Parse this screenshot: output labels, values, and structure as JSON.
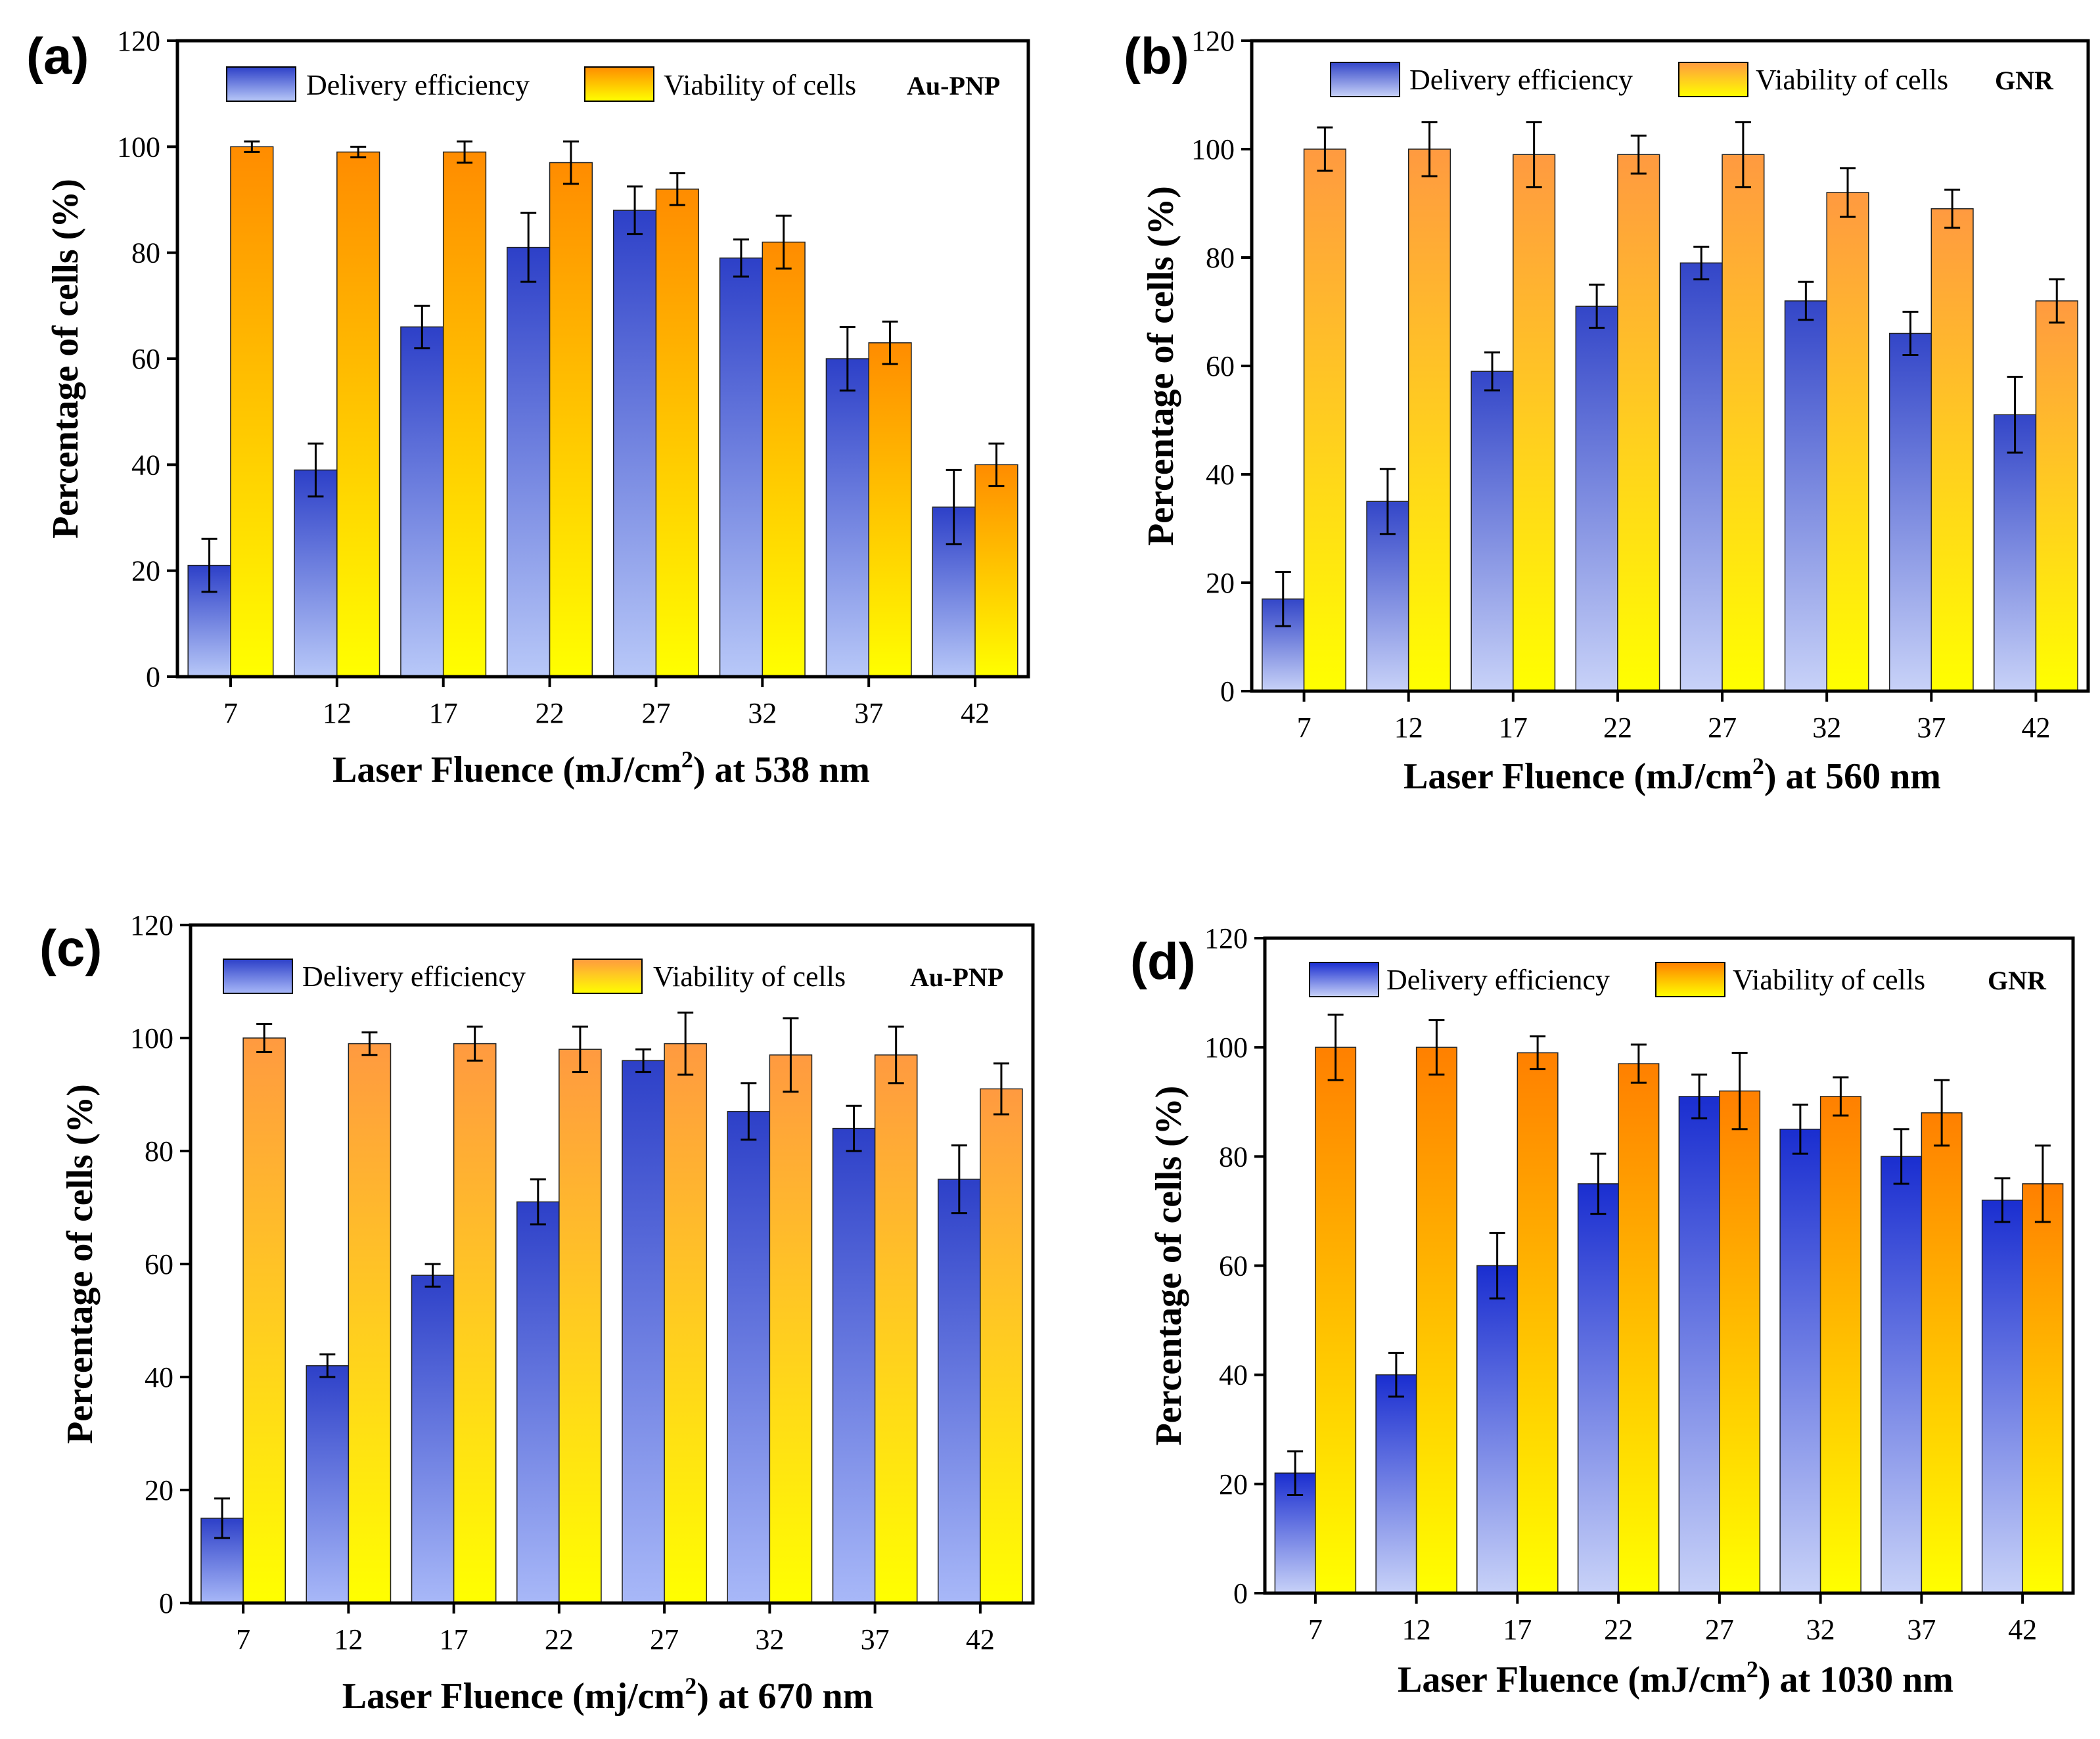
{
  "chart_data": [
    {
      "type": "bar",
      "panel_label": "(a)",
      "tag": "Au-PNP",
      "categories": [
        "7",
        "12",
        "17",
        "22",
        "27",
        "32",
        "37",
        "42"
      ],
      "series": [
        {
          "name": "Delivery efficiency",
          "values": [
            21,
            39,
            66,
            81,
            88,
            79,
            60,
            32
          ],
          "errors": [
            5,
            5,
            4,
            6.5,
            4.5,
            3.5,
            6,
            7
          ],
          "color_top": "#2d40c8",
          "color_bottom": "#b8c8f8"
        },
        {
          "name": "Viability of cells",
          "values": [
            100,
            99,
            99,
            97,
            92,
            82,
            63,
            40
          ],
          "errors": [
            1,
            1,
            2,
            4,
            3,
            5,
            4,
            4
          ],
          "color_top": "#ff8c00",
          "color_bottom": "#ffff00"
        }
      ],
      "xlabel_main": "Laser Fluence (mJ/cm",
      "xlabel_sup": "2",
      "xlabel_tail": ") at 538 nm",
      "ylabel": "Percentage of cells (%)",
      "yticks": [
        "0",
        "20",
        "40",
        "60",
        "80",
        "100",
        "120"
      ],
      "ylim": [
        0,
        120
      ],
      "legend": "top"
    },
    {
      "type": "bar",
      "panel_label": "(b)",
      "tag": "GNR",
      "categories": [
        "7",
        "12",
        "17",
        "22",
        "27",
        "32",
        "37",
        "42"
      ],
      "series": [
        {
          "name": "Delivery efficiency",
          "values": [
            17,
            35,
            59,
            71,
            79,
            72,
            66,
            51
          ],
          "errors": [
            5,
            6,
            3.5,
            4,
            3,
            3.5,
            4,
            7
          ],
          "color_top": "#3346c8",
          "color_bottom": "#c8d2f8"
        },
        {
          "name": "Viability of cells",
          "values": [
            100,
            100,
            99,
            99,
            99,
            92,
            89,
            72
          ],
          "errors": [
            4,
            5,
            6,
            3.5,
            6,
            4.5,
            3.5,
            4
          ],
          "color_top": "#ff9a40",
          "color_bottom": "#ffff00"
        }
      ],
      "xlabel_main": "Laser Fluence (mJ/cm",
      "xlabel_sup": "2",
      "xlabel_tail": ") at 560 nm",
      "ylabel": "Percentage of cells (%)",
      "yticks": [
        "0",
        "20",
        "40",
        "60",
        "80",
        "100",
        "120"
      ],
      "ylim": [
        0,
        120
      ],
      "legend": "top"
    },
    {
      "type": "bar",
      "panel_label": "(c)",
      "tag": "Au-PNP",
      "categories": [
        "7",
        "12",
        "17",
        "22",
        "27",
        "32",
        "37",
        "42"
      ],
      "series": [
        {
          "name": "Delivery efficiency",
          "values": [
            15,
            42,
            58,
            71,
            96,
            87,
            84,
            75
          ],
          "errors": [
            3.5,
            2,
            2,
            4,
            2,
            5,
            4,
            6
          ],
          "color_top": "#2d40c8",
          "color_bottom": "#a8b8f8"
        },
        {
          "name": "Viability of cells",
          "values": [
            100,
            99,
            99,
            98,
            99,
            97,
            97,
            91
          ],
          "errors": [
            2.5,
            2,
            3,
            4,
            5.5,
            6.5,
            5,
            4.5
          ],
          "color_top": "#ff9a40",
          "color_bottom": "#ffff00"
        }
      ],
      "xlabel_main": "Laser Fluence (mj/cm",
      "xlabel_sup": "2",
      "xlabel_tail": ") at 670 nm",
      "ylabel": "Percentage of cells (%)",
      "yticks": [
        "0",
        "20",
        "40",
        "60",
        "80",
        "100",
        "120"
      ],
      "ylim": [
        0,
        120
      ],
      "legend": "top"
    },
    {
      "type": "bar",
      "panel_label": "(d)",
      "tag": "GNR",
      "categories": [
        "7",
        "12",
        "17",
        "22",
        "27",
        "32",
        "37",
        "42"
      ],
      "series": [
        {
          "name": "Delivery efficiency",
          "values": [
            22,
            40,
            60,
            75,
            91,
            85,
            80,
            72
          ],
          "errors": [
            4,
            4,
            6,
            5.5,
            4,
            4.5,
            5,
            4
          ],
          "color_top": "#1a2ed0",
          "color_bottom": "#c8d2f8"
        },
        {
          "name": "Viability of cells",
          "values": [
            100,
            100,
            99,
            97,
            92,
            91,
            88,
            75
          ],
          "errors": [
            6,
            5,
            3,
            3.5,
            7,
            3.5,
            6,
            7
          ],
          "color_top": "#ff8000",
          "color_bottom": "#ffff00"
        }
      ],
      "xlabel_main": "Laser Fluence (mJ/cm",
      "xlabel_sup": "2",
      "xlabel_tail": ") at 1030 nm",
      "ylabel": "Percentage of cells (%)",
      "yticks": [
        "0",
        "20",
        "40",
        "60",
        "80",
        "100",
        "120"
      ],
      "ylim": [
        0,
        120
      ],
      "legend": "top"
    }
  ]
}
